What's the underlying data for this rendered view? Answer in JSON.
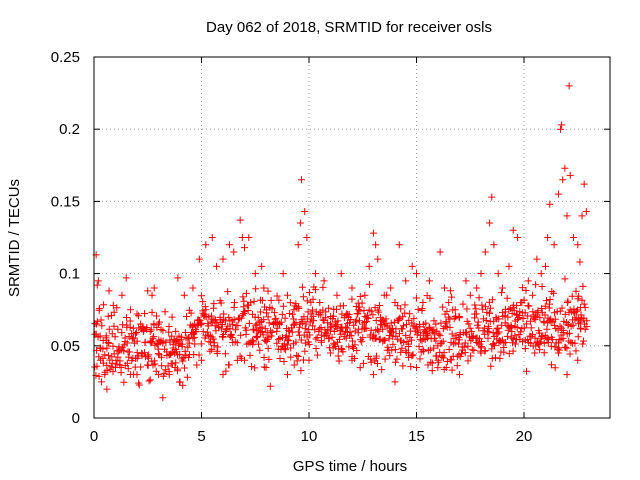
{
  "chart_data": {
    "type": "scatter",
    "title": "Day 062 of 2018, SRMTID for receiver osls",
    "xlabel": "GPS time / hours",
    "ylabel": "SRMTID / TECUs",
    "xlim": [
      0,
      24
    ],
    "ylim": [
      0,
      0.25
    ],
    "x_ticks": [
      0,
      5,
      10,
      15,
      20
    ],
    "x_tick_labels": [
      "0",
      "5",
      "10",
      "15",
      "20"
    ],
    "y_ticks": [
      0,
      0.05,
      0.1,
      0.15,
      0.2,
      0.25
    ],
    "y_tick_labels": [
      "0",
      "0.05",
      "0.1",
      "0.15",
      "0.2",
      "0.25"
    ],
    "grid": true,
    "marker": "+",
    "color": "#ff0000",
    "series": [
      {
        "name": "SRMTID",
        "points": [
          [
            0.1,
            0.113
          ],
          [
            0.15,
            0.092
          ],
          [
            0.2,
            0.095
          ],
          [
            0.12,
            0.065
          ],
          [
            0.3,
            0.04
          ],
          [
            0.35,
            0.025
          ],
          [
            0.5,
            0.03
          ],
          [
            0.6,
            0.02
          ],
          [
            0.7,
            0.088
          ],
          [
            0.9,
            0.078
          ],
          [
            1.3,
            0.085
          ],
          [
            1.5,
            0.097
          ],
          [
            1.7,
            0.075
          ],
          [
            2.0,
            0.072
          ],
          [
            2.3,
            0.06
          ],
          [
            2.5,
            0.088
          ],
          [
            2.7,
            0.085
          ],
          [
            2.8,
            0.09
          ],
          [
            3.0,
            0.065
          ],
          [
            3.2,
            0.014
          ],
          [
            3.5,
            0.03
          ],
          [
            3.8,
            0.06
          ],
          [
            3.9,
            0.097
          ],
          [
            4.2,
            0.085
          ],
          [
            4.6,
            0.09
          ],
          [
            4.9,
            0.11
          ],
          [
            5.2,
            0.12
          ],
          [
            5.5,
            0.125
          ],
          [
            5.7,
            0.105
          ],
          [
            6.0,
            0.11
          ],
          [
            6.3,
            0.12
          ],
          [
            6.5,
            0.115
          ],
          [
            6.8,
            0.137
          ],
          [
            6.9,
            0.125
          ],
          [
            7.0,
            0.118
          ],
          [
            7.2,
            0.125
          ],
          [
            7.5,
            0.1
          ],
          [
            7.8,
            0.105
          ],
          [
            7.9,
            0.09
          ],
          [
            8.1,
            0.07
          ],
          [
            8.2,
            0.022
          ],
          [
            8.5,
            0.06
          ],
          [
            8.8,
            0.1
          ],
          [
            9.0,
            0.085
          ],
          [
            9.3,
            0.075
          ],
          [
            9.5,
            0.12
          ],
          [
            9.6,
            0.135
          ],
          [
            9.65,
            0.165
          ],
          [
            9.8,
            0.143
          ],
          [
            9.9,
            0.125
          ],
          [
            10.1,
            0.072
          ],
          [
            10.3,
            0.1
          ],
          [
            10.5,
            0.08
          ],
          [
            10.7,
            0.095
          ],
          [
            11.0,
            0.065
          ],
          [
            11.3,
            0.085
          ],
          [
            11.5,
            0.1
          ],
          [
            11.7,
            0.06
          ],
          [
            12.0,
            0.09
          ],
          [
            12.3,
            0.075
          ],
          [
            12.6,
            0.085
          ],
          [
            12.8,
            0.105
          ],
          [
            13.0,
            0.128
          ],
          [
            13.1,
            0.12
          ],
          [
            13.2,
            0.11
          ],
          [
            13.5,
            0.085
          ],
          [
            13.8,
            0.09
          ],
          [
            14.0,
            0.08
          ],
          [
            14.2,
            0.12
          ],
          [
            14.5,
            0.095
          ],
          [
            14.8,
            0.105
          ],
          [
            15.0,
            0.1
          ],
          [
            15.3,
            0.08
          ],
          [
            15.6,
            0.095
          ],
          [
            15.9,
            0.065
          ],
          [
            16.1,
            0.115
          ],
          [
            16.3,
            0.09
          ],
          [
            16.5,
            0.08
          ],
          [
            16.8,
            0.075
          ],
          [
            17.0,
            0.07
          ],
          [
            17.3,
            0.095
          ],
          [
            17.5,
            0.085
          ],
          [
            17.8,
            0.09
          ],
          [
            18.0,
            0.1
          ],
          [
            18.2,
            0.115
          ],
          [
            18.4,
            0.135
          ],
          [
            18.5,
            0.153
          ],
          [
            18.6,
            0.12
          ],
          [
            18.8,
            0.1
          ],
          [
            19.0,
            0.09
          ],
          [
            19.3,
            0.105
          ],
          [
            19.5,
            0.13
          ],
          [
            19.7,
            0.125
          ],
          [
            19.9,
            0.08
          ],
          [
            20.2,
            0.095
          ],
          [
            20.4,
            0.085
          ],
          [
            20.6,
            0.11
          ],
          [
            20.8,
            0.1
          ],
          [
            21.0,
            0.105
          ],
          [
            21.1,
            0.125
          ],
          [
            21.2,
            0.148
          ],
          [
            21.4,
            0.12
          ],
          [
            21.6,
            0.155
          ],
          [
            21.7,
            0.2
          ],
          [
            21.75,
            0.203
          ],
          [
            21.8,
            0.165
          ],
          [
            21.9,
            0.173
          ],
          [
            22.0,
            0.14
          ],
          [
            22.1,
            0.23
          ],
          [
            22.15,
            0.168
          ],
          [
            22.3,
            0.125
          ],
          [
            22.5,
            0.12
          ],
          [
            22.6,
            0.108
          ],
          [
            22.7,
            0.14
          ],
          [
            22.8,
            0.162
          ],
          [
            22.9,
            0.143
          ],
          [
            21.6,
            0.045
          ],
          [
            22.0,
            0.03
          ],
          [
            22.5,
            0.04
          ],
          [
            20.5,
            0.045
          ],
          [
            19.5,
            0.055
          ],
          [
            18.0,
            0.045
          ],
          [
            17.0,
            0.03
          ],
          [
            16.0,
            0.04
          ],
          [
            15.0,
            0.035
          ],
          [
            14.0,
            0.025
          ],
          [
            13.0,
            0.03
          ],
          [
            12.0,
            0.04
          ],
          [
            11.0,
            0.045
          ],
          [
            10.0,
            0.04
          ],
          [
            9.0,
            0.03
          ],
          [
            8.0,
            0.035
          ],
          [
            7.0,
            0.04
          ],
          [
            6.0,
            0.03
          ],
          [
            5.0,
            0.04
          ],
          [
            4.0,
            0.025
          ],
          [
            3.0,
            0.03
          ],
          [
            2.0,
            0.03
          ],
          [
            1.0,
            0.035
          ]
        ],
        "band": {
          "x_start": 0.05,
          "x_end": 22.95,
          "x_step": 0.05,
          "base_profile": [
            [
              0,
              0.05
            ],
            [
              2,
              0.05
            ],
            [
              4,
              0.048
            ],
            [
              5,
              0.06
            ],
            [
              7,
              0.065
            ],
            [
              9,
              0.058
            ],
            [
              10,
              0.065
            ],
            [
              12,
              0.062
            ],
            [
              14,
              0.058
            ],
            [
              16,
              0.057
            ],
            [
              18,
              0.062
            ],
            [
              20,
              0.065
            ],
            [
              21,
              0.06
            ],
            [
              22,
              0.065
            ],
            [
              23,
              0.07
            ]
          ],
          "spread": 0.035,
          "min": 0.012
        }
      }
    ]
  }
}
